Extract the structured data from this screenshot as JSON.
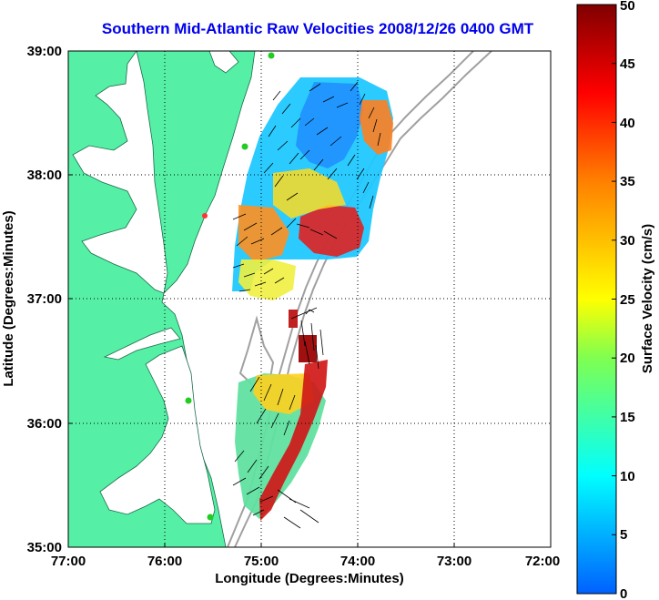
{
  "title": "Southern Mid-Atlantic Raw Velocities 2008/12/26 0400 GMT",
  "x_axis": {
    "label": "Longitude (Degrees:Minutes)",
    "ticks": [
      "77:00",
      "76:00",
      "75:00",
      "74:00",
      "73:00",
      "72:00"
    ]
  },
  "y_axis": {
    "label": "Latitude (Degrees:Minutes)",
    "ticks": [
      "39:00",
      "38:00",
      "37:00",
      "36:00",
      "35:00"
    ]
  },
  "colorbar": {
    "label": "Surface Velocity (cm/s)",
    "min": 0,
    "max": 50,
    "ticks": [
      "50",
      "45",
      "40",
      "35",
      "30",
      "25",
      "20",
      "15",
      "10",
      "5",
      "0"
    ],
    "colormap": "jet"
  },
  "colors": {
    "land": "#55f0a5",
    "water": "#ffffff",
    "bathymetry": "#a0a0a0",
    "vector": "#000000",
    "title": "#0000ee",
    "station_active": "#22cc22",
    "station_other": "#ff3333"
  },
  "grid": true
}
